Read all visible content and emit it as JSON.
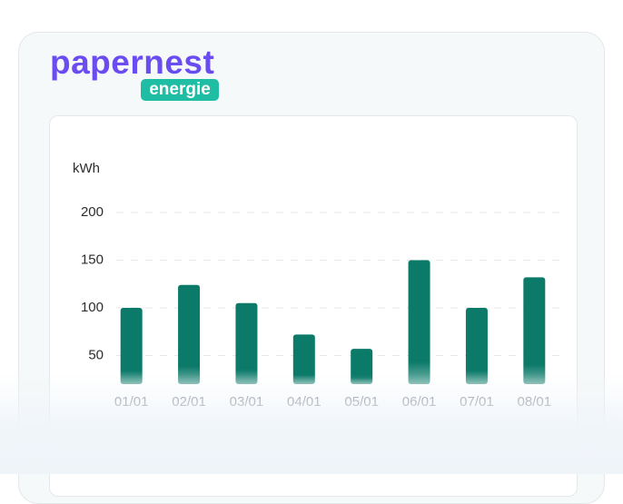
{
  "logo": {
    "brand": "papernest",
    "badge": "energie"
  },
  "chart_data": {
    "type": "bar",
    "y_label": "kWh",
    "categories": [
      "01/01",
      "02/01",
      "03/01",
      "04/01",
      "05/01",
      "06/01",
      "07/01",
      "08/01"
    ],
    "values": [
      100,
      124,
      105,
      72,
      57,
      150,
      100,
      132
    ],
    "color": "#0b7a69",
    "ylim": [
      20,
      200
    ],
    "yticks": [
      50,
      100,
      150,
      200
    ],
    "grid": true
  }
}
